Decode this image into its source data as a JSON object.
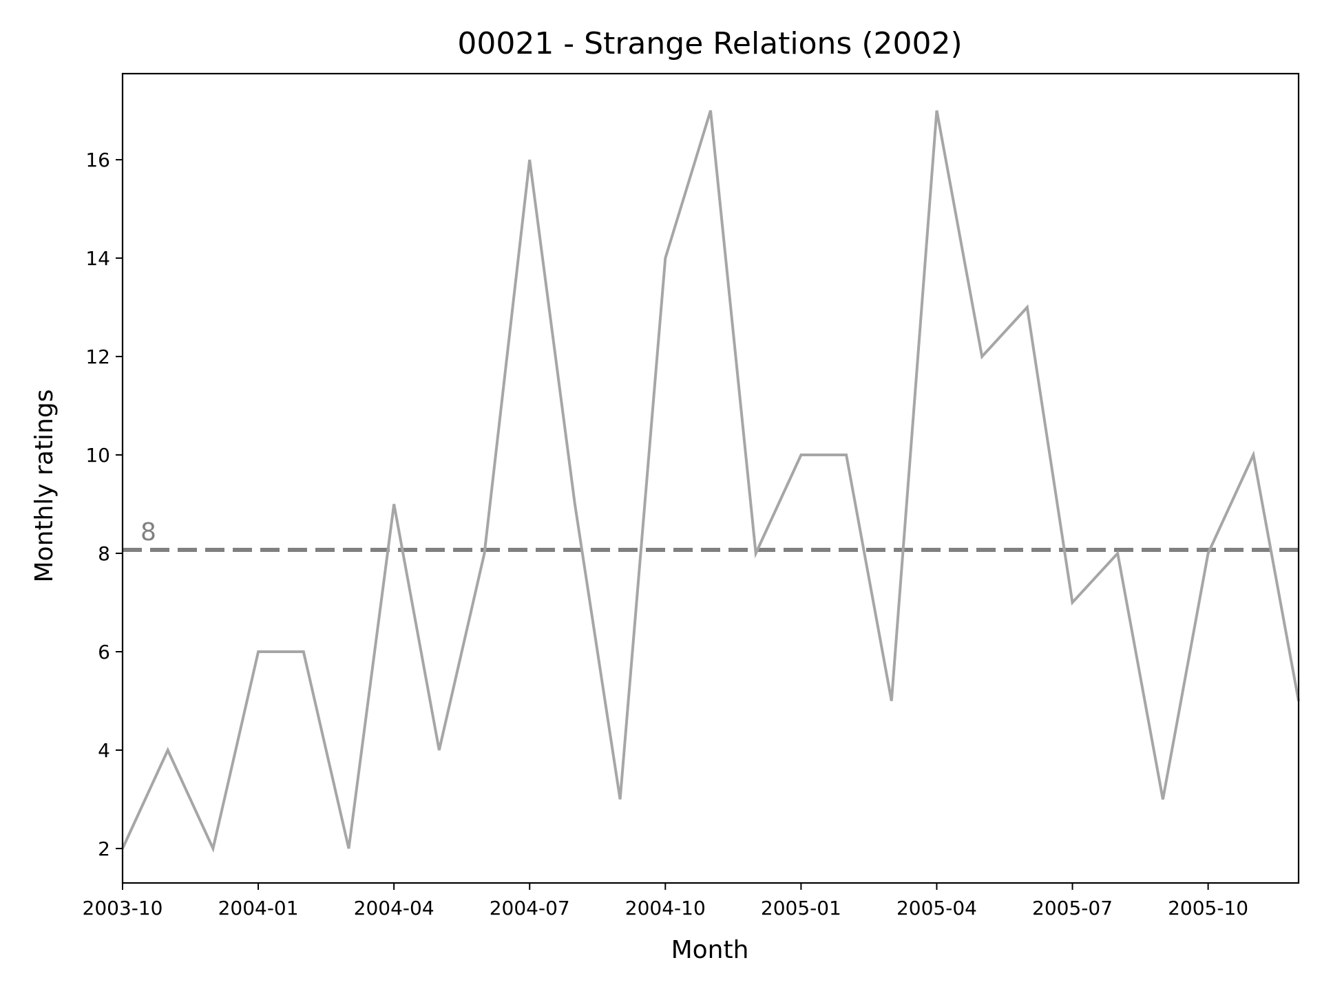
{
  "chart_data": {
    "type": "line",
    "title": "00021 - Strange Relations (2002)",
    "xlabel": "Month",
    "ylabel": "Monthly ratings",
    "x": [
      "2003-10",
      "2003-11",
      "2003-12",
      "2004-01",
      "2004-02",
      "2004-03",
      "2004-04",
      "2004-05",
      "2004-06",
      "2004-07",
      "2004-08",
      "2004-09",
      "2004-10",
      "2004-11",
      "2004-12",
      "2005-01",
      "2005-02",
      "2005-03",
      "2005-04",
      "2005-05",
      "2005-06",
      "2005-07",
      "2005-08",
      "2005-09",
      "2005-10",
      "2005-11",
      "2005-12"
    ],
    "series": [
      {
        "values": [
          2,
          4,
          2,
          6,
          6,
          2,
          9,
          4,
          8,
          16,
          9,
          3,
          14,
          17,
          8,
          10,
          10,
          5,
          17,
          12,
          13,
          7,
          8,
          3,
          8,
          10,
          5
        ],
        "color": "#a6a6a6"
      }
    ],
    "xticks": [
      "2003-10",
      "2004-01",
      "2004-04",
      "2004-07",
      "2004-10",
      "2005-01",
      "2005-04",
      "2005-07",
      "2005-10"
    ],
    "yticks": [
      2,
      4,
      6,
      8,
      10,
      12,
      14,
      16
    ],
    "ylim": [
      1.3,
      17.75
    ],
    "xlim": [
      "2003-10",
      "2005-12"
    ],
    "reference_line": {
      "value": 8.07,
      "label": "8",
      "style": "dashed",
      "color": "#808080"
    },
    "grid": false,
    "legend": "none"
  }
}
